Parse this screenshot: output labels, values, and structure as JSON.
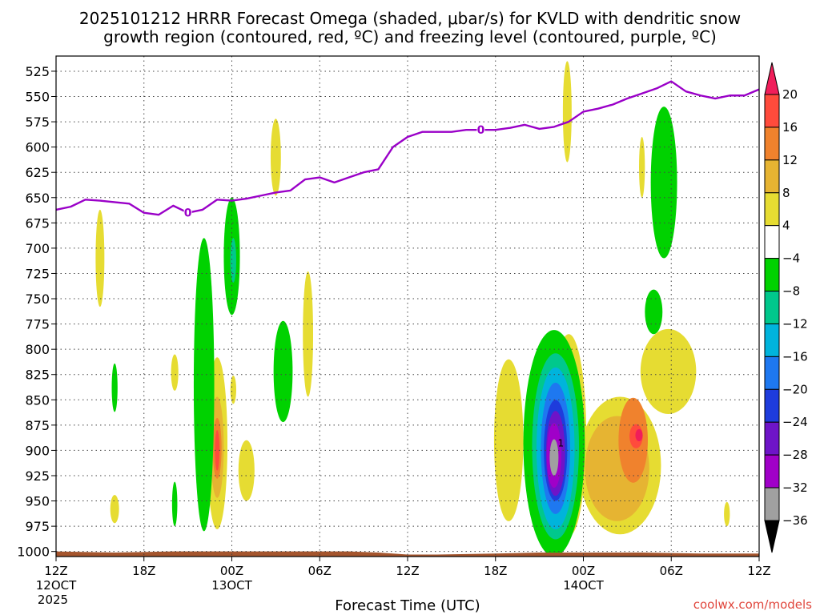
{
  "chart_data": {
    "type": "heatmap",
    "title_line1": "2025101212 HRRR Forecast Omega (shaded, μbar/s) for KVLD with dendritic snow",
    "title_line2": "growth region (contoured, red, ºC) and freezing level (contoured, purple, ºC)",
    "xlabel": "Forecast Time (UTC)",
    "credit": "coolwx.com/models",
    "x_range_hours": [
      0,
      48
    ],
    "y_range_mb": [
      510,
      1005
    ],
    "x_ticks": [
      {
        "hour": 0,
        "label": "12Z",
        "sub": "12OCT",
        "sub2": "2025"
      },
      {
        "hour": 6,
        "label": "18Z",
        "sub": "",
        "sub2": ""
      },
      {
        "hour": 12,
        "label": "00Z",
        "sub": "13OCT",
        "sub2": ""
      },
      {
        "hour": 18,
        "label": "06Z",
        "sub": "",
        "sub2": ""
      },
      {
        "hour": 24,
        "label": "12Z",
        "sub": "",
        "sub2": ""
      },
      {
        "hour": 30,
        "label": "18Z",
        "sub": "",
        "sub2": ""
      },
      {
        "hour": 36,
        "label": "00Z",
        "sub": "14OCT",
        "sub2": ""
      },
      {
        "hour": 42,
        "label": "06Z",
        "sub": "",
        "sub2": ""
      },
      {
        "hour": 48,
        "label": "12Z",
        "sub": "",
        "sub2": ""
      }
    ],
    "y_ticks": [
      525,
      550,
      575,
      600,
      625,
      650,
      675,
      700,
      725,
      750,
      775,
      800,
      825,
      850,
      875,
      900,
      925,
      950,
      975,
      1000
    ],
    "colorbar": {
      "labels": [
        "20",
        "16",
        "12",
        "8",
        "4",
        "−4",
        "−8",
        "−12",
        "−16",
        "−20",
        "−24",
        "−28",
        "−32",
        "−36"
      ],
      "colors": [
        "#f01e5a",
        "#ff4b3c",
        "#f0822d",
        "#e6b432",
        "#e6dc32",
        "#ffffff",
        "#00d200",
        "#00c88c",
        "#00b4dc",
        "#1e78f0",
        "#1e3cdc",
        "#6e14c8",
        "#a000c8",
        "#a0a0a0",
        "#000000"
      ]
    },
    "freezing_level": {
      "color": "#9a00c8",
      "label": "0",
      "points": [
        [
          0,
          662
        ],
        [
          1,
          659
        ],
        [
          2,
          652
        ],
        [
          3,
          653
        ],
        [
          5,
          656
        ],
        [
          6,
          665
        ],
        [
          7,
          667
        ],
        [
          8,
          658
        ],
        [
          9,
          665
        ],
        [
          10,
          662
        ],
        [
          11,
          652
        ],
        [
          12,
          653
        ],
        [
          13,
          651
        ],
        [
          14,
          648
        ],
        [
          15,
          645
        ],
        [
          16,
          643
        ],
        [
          17,
          632
        ],
        [
          18,
          630
        ],
        [
          19,
          635
        ],
        [
          20,
          630
        ],
        [
          21,
          625
        ],
        [
          22,
          622
        ],
        [
          23,
          600
        ],
        [
          24,
          590
        ],
        [
          25,
          585
        ],
        [
          26,
          585
        ],
        [
          27,
          585
        ],
        [
          28,
          583
        ],
        [
          29,
          583
        ],
        [
          30,
          583
        ],
        [
          31,
          581
        ],
        [
          32,
          578
        ],
        [
          33,
          582
        ],
        [
          34,
          580
        ],
        [
          35,
          575
        ],
        [
          36,
          565
        ],
        [
          37,
          562
        ],
        [
          38,
          558
        ],
        [
          39,
          552
        ],
        [
          40,
          547
        ],
        [
          41,
          542
        ],
        [
          42,
          535
        ],
        [
          43,
          545
        ],
        [
          44,
          549
        ],
        [
          45,
          552
        ],
        [
          46,
          549
        ],
        [
          47,
          549
        ],
        [
          48,
          543
        ]
      ]
    },
    "omega_regions": [
      {
        "level": 4,
        "hour": 3.0,
        "mb": 710,
        "dh": 0.3,
        "dmb": 48,
        "color": "#e6dc32"
      },
      {
        "level": 4,
        "hour": 8.1,
        "mb": 823,
        "dh": 0.25,
        "dmb": 18,
        "color": "#e6dc32"
      },
      {
        "level": 4,
        "hour": 4.0,
        "mb": 958,
        "dh": 0.3,
        "dmb": 14,
        "color": "#e6dc32"
      },
      {
        "level": 4,
        "hour": 11.0,
        "mb": 893,
        "dh": 0.7,
        "dmb": 85,
        "color": "#e6dc32"
      },
      {
        "level": 8,
        "hour": 11.0,
        "mb": 897,
        "dh": 0.45,
        "dmb": 50,
        "color": "#e6b432"
      },
      {
        "level": 12,
        "hour": 11.0,
        "mb": 898,
        "dh": 0.3,
        "dmb": 30,
        "color": "#f0822d"
      },
      {
        "level": 16,
        "hour": 11.0,
        "mb": 900,
        "dh": 0.16,
        "dmb": 20,
        "color": "#ff4b3c"
      },
      {
        "level": 4,
        "hour": 12.1,
        "mb": 840,
        "dh": 0.2,
        "dmb": 14,
        "color": "#e6dc32"
      },
      {
        "level": 4,
        "hour": 13.0,
        "mb": 920,
        "dh": 0.55,
        "dmb": 30,
        "color": "#e6dc32"
      },
      {
        "level": 4,
        "hour": 15.0,
        "mb": 610,
        "dh": 0.35,
        "dmb": 38,
        "color": "#e6dc32"
      },
      {
        "level": 4,
        "hour": 17.2,
        "mb": 785,
        "dh": 0.35,
        "dmb": 62,
        "color": "#e6dc32"
      },
      {
        "level": 4,
        "hour": 30.9,
        "mb": 890,
        "dh": 1.0,
        "dmb": 80,
        "color": "#e6dc32"
      },
      {
        "level": 4,
        "hour": 35.0,
        "mb": 885,
        "dh": 1.2,
        "dmb": 100,
        "color": "#e6dc32"
      },
      {
        "level": 4,
        "hour": 34.9,
        "mb": 565,
        "dh": 0.3,
        "dmb": 50,
        "color": "#e6dc32"
      },
      {
        "level": 4,
        "hour": 38.5,
        "mb": 915,
        "dh": 2.8,
        "dmb": 68,
        "color": "#e6dc32"
      },
      {
        "level": 4,
        "hour": 41.8,
        "mb": 822,
        "dh": 1.9,
        "dmb": 42,
        "color": "#e6dc32"
      },
      {
        "level": 4,
        "hour": 40.0,
        "mb": 620,
        "dh": 0.2,
        "dmb": 30,
        "color": "#e6dc32"
      },
      {
        "level": 4,
        "hour": 45.8,
        "mb": 963,
        "dh": 0.2,
        "dmb": 12,
        "color": "#e6dc32"
      },
      {
        "level": 8,
        "hour": 38.3,
        "mb": 918,
        "dh": 2.2,
        "dmb": 52,
        "color": "#e6b432"
      },
      {
        "level": 12,
        "hour": 39.4,
        "mb": 890,
        "dh": 1.0,
        "dmb": 42,
        "color": "#f0822d"
      },
      {
        "level": 16,
        "hour": 39.6,
        "mb": 886,
        "dh": 0.45,
        "dmb": 12,
        "color": "#ff4b3c"
      },
      {
        "level": 20,
        "hour": 39.8,
        "mb": 885,
        "dh": 0.25,
        "dmb": 6,
        "color": "#f01e5a"
      },
      {
        "level": -4,
        "hour": 4.0,
        "mb": 838,
        "dh": 0.2,
        "dmb": 24,
        "color": "#00d200"
      },
      {
        "level": -4,
        "hour": 8.1,
        "mb": 953,
        "dh": 0.18,
        "dmb": 22,
        "color": "#00d200"
      },
      {
        "level": -4,
        "hour": 10.1,
        "mb": 835,
        "dh": 0.7,
        "dmb": 145,
        "color": "#00d200"
      },
      {
        "level": -4,
        "hour": 12.0,
        "mb": 708,
        "dh": 0.55,
        "dmb": 58,
        "color": "#00d200"
      },
      {
        "level": -4,
        "hour": 15.5,
        "mb": 822,
        "dh": 0.65,
        "dmb": 50,
        "color": "#00d200"
      },
      {
        "level": -4,
        "hour": 34.0,
        "mb": 893,
        "dh": 2.1,
        "dmb": 112,
        "color": "#00d200"
      },
      {
        "level": -4,
        "hour": 40.8,
        "mb": 763,
        "dh": 0.6,
        "dmb": 22,
        "color": "#00d200"
      },
      {
        "level": -4,
        "hour": 41.5,
        "mb": 635,
        "dh": 0.9,
        "dmb": 75,
        "color": "#00d200"
      },
      {
        "level": -8,
        "hour": 34.1,
        "mb": 896,
        "dh": 1.6,
        "dmb": 92,
        "color": "#00c88c"
      },
      {
        "level": -12,
        "hour": 12.1,
        "mb": 712,
        "dh": 0.2,
        "dmb": 22,
        "color": "#00c88c"
      },
      {
        "level": -12,
        "hour": 34.1,
        "mb": 898,
        "dh": 1.3,
        "dmb": 80,
        "color": "#00b4dc"
      },
      {
        "level": -16,
        "hour": 34.1,
        "mb": 898,
        "dh": 1.0,
        "dmb": 65,
        "color": "#1e78f0"
      },
      {
        "level": -20,
        "hour": 34.1,
        "mb": 900,
        "dh": 0.8,
        "dmb": 50,
        "color": "#1e3cdc"
      },
      {
        "level": -24,
        "hour": 34.1,
        "mb": 903,
        "dh": 0.65,
        "dmb": 42,
        "color": "#6e14c8"
      },
      {
        "level": -28,
        "hour": 34.0,
        "mb": 905,
        "dh": 0.5,
        "dmb": 32,
        "color": "#a000c8"
      },
      {
        "level": -32,
        "hour": 34.0,
        "mb": 907,
        "dh": 0.3,
        "dmb": 18,
        "color": "#a0a0a0"
      }
    ],
    "terrain": {
      "color": "#a5552d",
      "points": [
        [
          0,
          1000
        ],
        [
          4,
          1001
        ],
        [
          8,
          1000
        ],
        [
          12,
          1000
        ],
        [
          16,
          1000
        ],
        [
          20,
          1000
        ],
        [
          22,
          1001
        ],
        [
          24,
          1003
        ],
        [
          26,
          1003
        ],
        [
          30,
          1002
        ],
        [
          33,
          1001
        ],
        [
          36,
          1001
        ],
        [
          40,
          1001
        ],
        [
          44,
          1002
        ],
        [
          48,
          1002
        ]
      ]
    }
  }
}
